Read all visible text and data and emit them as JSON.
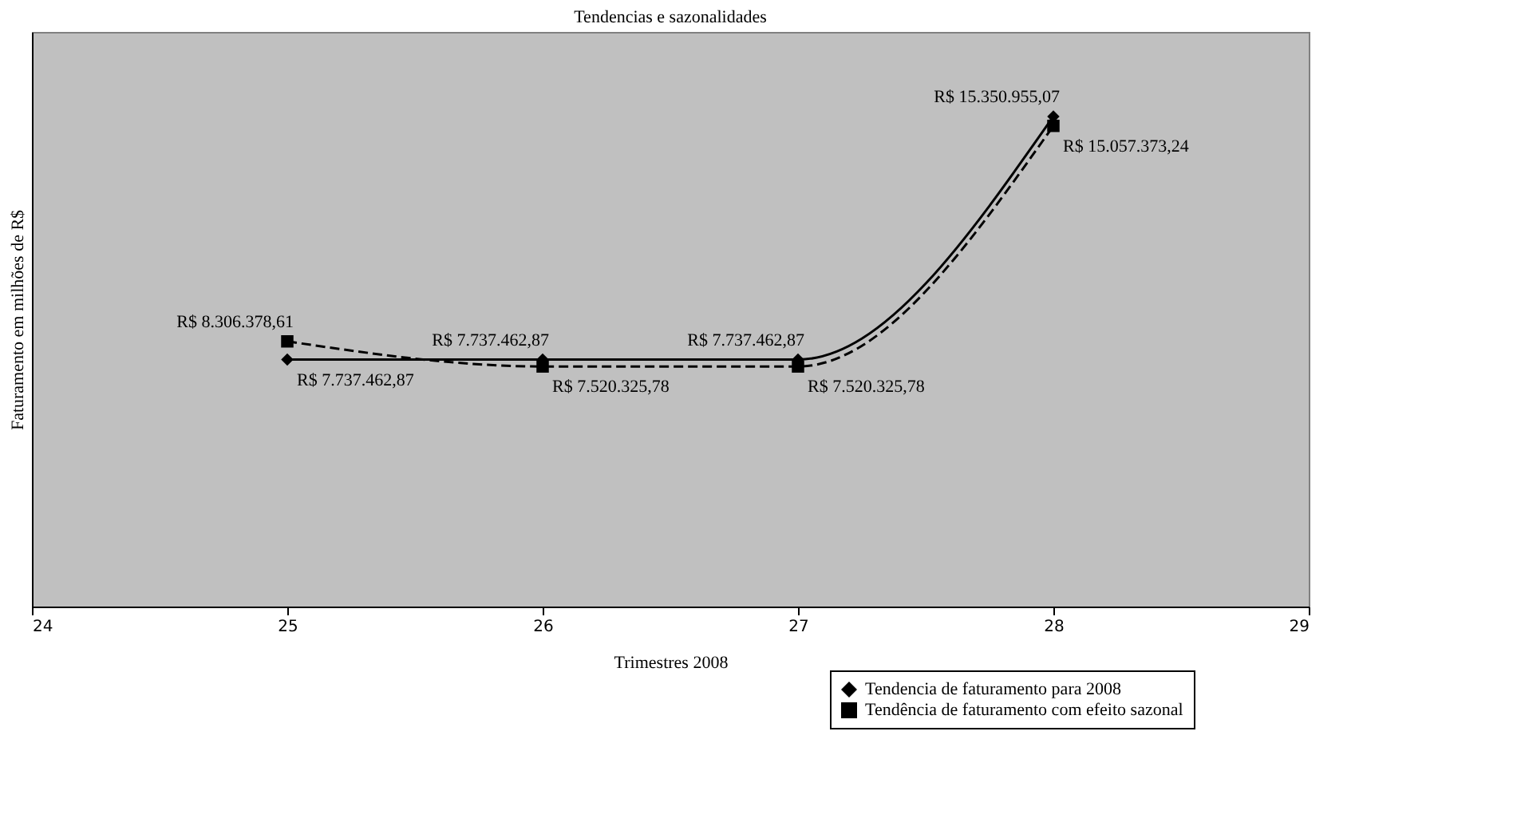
{
  "chart_data": {
    "type": "line",
    "title": "Tendencias e sazonalidades",
    "xlabel": "Trimestres 2008",
    "ylabel": "Faturamento em milhões de R$",
    "x": [
      25,
      26,
      27,
      28
    ],
    "xlim": [
      24,
      29
    ],
    "xticks": [
      24,
      25,
      26,
      27,
      28,
      29
    ],
    "ylim": [
      0,
      18000000
    ],
    "tick_labels": "x",
    "grid": false,
    "legend": "bottom right",
    "series": [
      {
        "name": "Tendencia de faturamento para 2008",
        "color": "#000000",
        "marker": "diamond",
        "line_style": "solid",
        "values": [
          7737462.87,
          7737462.87,
          7737462.87,
          15350955.07
        ],
        "value_labels": [
          "R$ 7.737.462,87",
          "R$ 7.737.462,87",
          "R$ 7.737.462,87",
          "R$ 15.350.955,07"
        ]
      },
      {
        "name": "Tendência de faturamento com efeito sazonal",
        "color": "#000000",
        "marker": "square",
        "line_style": "dashed",
        "values": [
          8306378.61,
          7520325.78,
          7520325.78,
          15057373.24
        ],
        "value_labels": [
          "R$ 8.306.378,61",
          "R$ 7.520.325,78",
          "R$ 7.520.325,78",
          "R$ 15.057.373,24"
        ]
      }
    ]
  }
}
